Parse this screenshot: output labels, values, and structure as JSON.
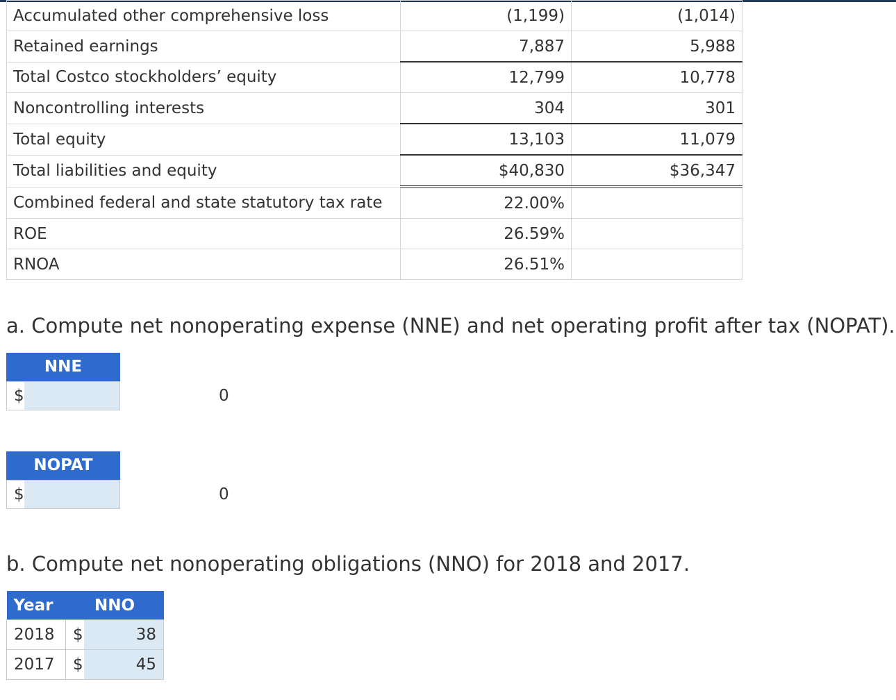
{
  "financials": {
    "rows": [
      {
        "label": "Accumulated other comprehensive loss",
        "y2018": "(1,199)",
        "y2017": "(1,014)",
        "rule": "none"
      },
      {
        "label": "Retained earnings",
        "y2018": "7,887",
        "y2017": "5,988",
        "rule": "single"
      },
      {
        "label": "Total Costco stockholders’ equity",
        "y2018": "12,799",
        "y2017": "10,778",
        "rule": "none"
      },
      {
        "label": "Noncontrolling interests",
        "y2018": "304",
        "y2017": "301",
        "rule": "single"
      },
      {
        "label": "Total equity",
        "y2018": "13,103",
        "y2017": "11,079",
        "rule": "single"
      },
      {
        "label": "Total liabilities and equity",
        "y2018": "$40,830",
        "y2017": "$36,347",
        "rule": "double"
      },
      {
        "label": "Combined federal and state statutory tax rate",
        "y2018": "22.00%",
        "y2017": "",
        "rule": "none"
      },
      {
        "label": "ROE",
        "y2018": "26.59%",
        "y2017": "",
        "rule": "none"
      },
      {
        "label": "RNOA",
        "y2018": "26.51%",
        "y2017": "",
        "rule": "none"
      }
    ]
  },
  "part_a": {
    "question": "a. Compute net nonoperating expense (NNE) and net operating profit after tax (NOPAT).",
    "nne": {
      "header": "NNE",
      "currency": "$",
      "value": "0"
    },
    "nopat": {
      "header": "NOPAT",
      "currency": "$",
      "value": "0"
    }
  },
  "part_b": {
    "question": "b. Compute net nonoperating obligations (NNO) for 2018 and 2017.",
    "headers": {
      "year": "Year",
      "nno": "NNO"
    },
    "rows": [
      {
        "year": "2018",
        "currency": "$",
        "value": "38"
      },
      {
        "year": "2017",
        "currency": "$",
        "value": "45"
      }
    ]
  }
}
